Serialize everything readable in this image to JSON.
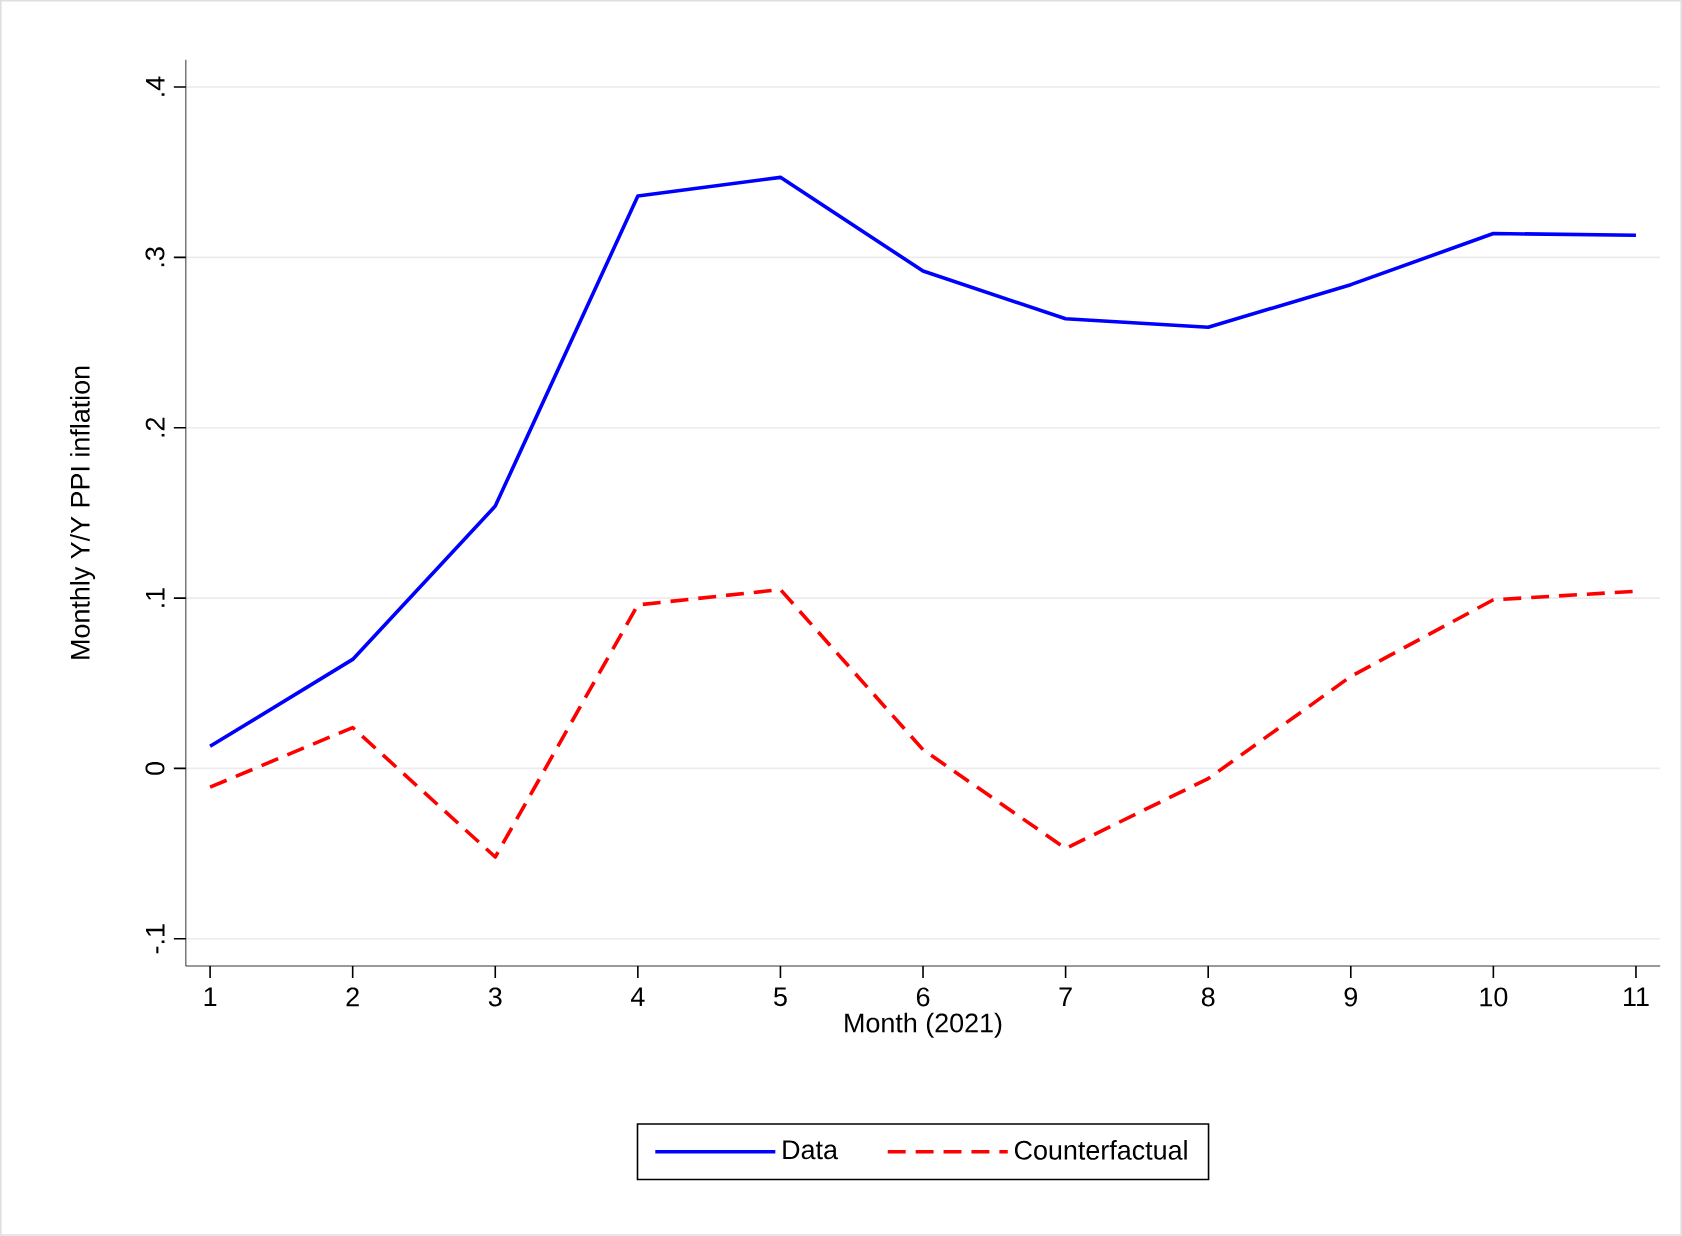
{
  "chart_data": {
    "type": "line",
    "xlabel": "Month (2021)",
    "ylabel": "Monthly Y/Y PPI inflation",
    "x": [
      1,
      2,
      3,
      4,
      5,
      6,
      7,
      8,
      9,
      10,
      11
    ],
    "series": [
      {
        "name": "Data",
        "color": "#0000ff",
        "line_style": "solid",
        "values": [
          0.013,
          0.064,
          0.154,
          0.336,
          0.347,
          0.292,
          0.264,
          0.259,
          0.284,
          0.314,
          0.313
        ]
      },
      {
        "name": "Counterfactual",
        "color": "#ff0000",
        "line_style": "dashed",
        "values": [
          -0.011,
          0.024,
          -0.052,
          0.096,
          0.105,
          0.011,
          -0.047,
          -0.006,
          0.054,
          0.099,
          0.104
        ]
      }
    ],
    "xlim": [
      0.83,
      11.17
    ],
    "ylim": [
      -0.116,
      0.416
    ],
    "xticks": [
      1,
      2,
      3,
      4,
      5,
      6,
      7,
      8,
      9,
      10,
      11
    ],
    "yticks": [
      {
        "value": -0.1,
        "label": "-.1"
      },
      0,
      {
        "value": 0.1,
        "label": ".1"
      },
      {
        "value": 0.2,
        "label": ".2"
      },
      {
        "value": 0.3,
        "label": ".3"
      },
      {
        "value": 0.4,
        "label": ".4"
      }
    ],
    "grid": "y",
    "legend": "bottom",
    "marker": "none"
  }
}
